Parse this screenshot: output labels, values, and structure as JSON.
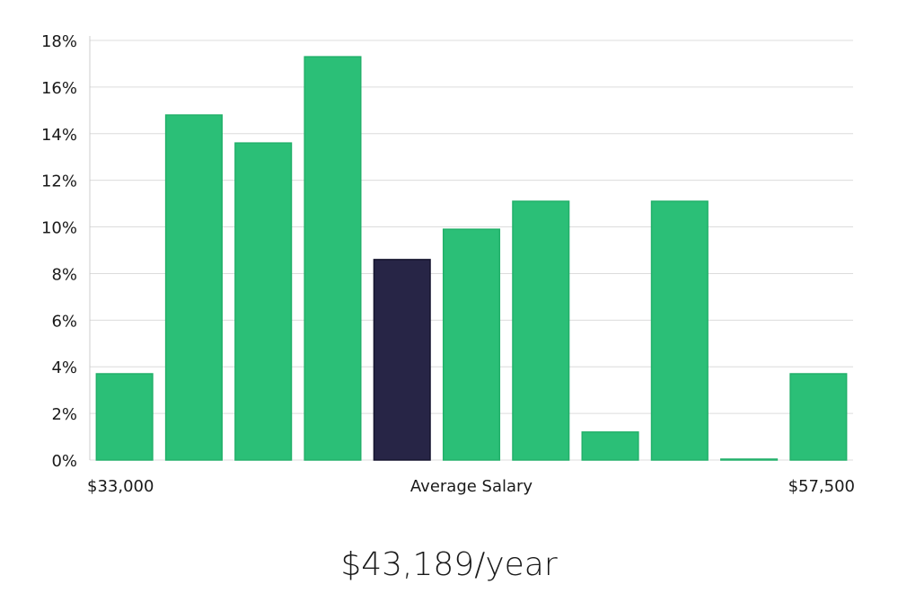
{
  "chart_data": {
    "type": "bar",
    "values": [
      3.7,
      14.8,
      13.6,
      17.3,
      8.6,
      9.9,
      11.1,
      1.2,
      11.1,
      0.0,
      3.7
    ],
    "highlight_index": 4,
    "ylim": [
      0,
      18
    ],
    "yticks": [
      0,
      2,
      4,
      6,
      8,
      10,
      12,
      14,
      16,
      18
    ],
    "ytick_suffix": "%",
    "x_labels": {
      "left": "$33,000",
      "center": "Average Salary",
      "right": "$57,500"
    },
    "grid": true,
    "colors": {
      "bar": "#2bbf77",
      "bar_border": "#22b06a",
      "highlight": "#272546",
      "highlight_border": "#15142e",
      "grid": "#dcdcdc",
      "axis": "#cccccc"
    }
  },
  "salary": {
    "readout": "$43,189/year"
  }
}
